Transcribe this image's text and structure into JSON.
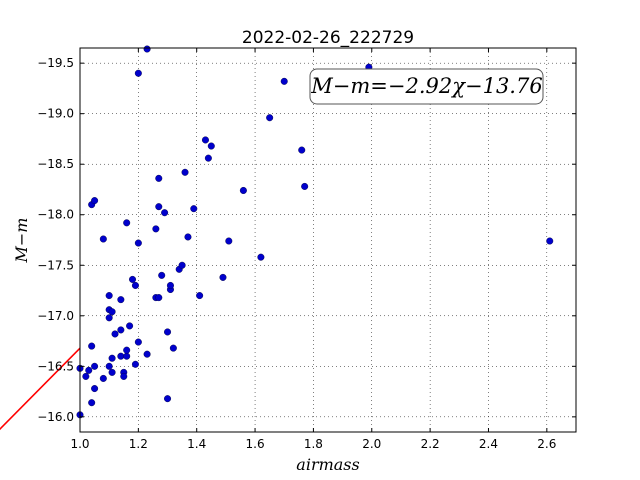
{
  "chart_data": {
    "type": "scatter",
    "title": "2022-02-26_222729",
    "xlabel": "airmass",
    "ylabel": "M−m",
    "xlim": [
      1.0,
      2.7
    ],
    "ylim": [
      -19.65,
      -15.85
    ],
    "y_inverted": true,
    "grid": true,
    "xticks": [
      "1.0",
      "1.2",
      "1.4",
      "1.6",
      "1.8",
      "2.0",
      "2.2",
      "2.4",
      "2.6"
    ],
    "yticks": [
      "−16.0",
      "−16.5",
      "−17.0",
      "−17.5",
      "−18.0",
      "−18.5",
      "−19.0",
      "−19.5"
    ],
    "annotation": "M−m=−2.92χ−13.76",
    "fit": {
      "slope": -2.92,
      "intercept": -13.76,
      "color": "#ff0000"
    },
    "point_color": "#0000cc",
    "points": [
      [
        1.0,
        -16.02
      ],
      [
        1.0,
        -16.48
      ],
      [
        1.02,
        -16.4
      ],
      [
        1.03,
        -16.46
      ],
      [
        1.04,
        -16.14
      ],
      [
        1.05,
        -16.28
      ],
      [
        1.05,
        -16.5
      ],
      [
        1.04,
        -16.7
      ],
      [
        1.08,
        -16.38
      ],
      [
        1.1,
        -16.5
      ],
      [
        1.11,
        -16.44
      ],
      [
        1.11,
        -16.58
      ],
      [
        1.12,
        -16.82
      ],
      [
        1.14,
        -16.6
      ],
      [
        1.15,
        -16.44
      ],
      [
        1.15,
        -16.4
      ],
      [
        1.16,
        -16.6
      ],
      [
        1.16,
        -16.66
      ],
      [
        1.19,
        -16.52
      ],
      [
        1.2,
        -16.74
      ],
      [
        1.23,
        -16.62
      ],
      [
        1.3,
        -16.18
      ],
      [
        1.32,
        -16.68
      ],
      [
        1.3,
        -16.84
      ],
      [
        1.14,
        -16.86
      ],
      [
        1.17,
        -16.9
      ],
      [
        1.1,
        -16.98
      ],
      [
        1.1,
        -17.06
      ],
      [
        1.11,
        -17.04
      ],
      [
        1.14,
        -17.16
      ],
      [
        1.1,
        -17.2
      ],
      [
        1.26,
        -17.18
      ],
      [
        1.27,
        -17.18
      ],
      [
        1.31,
        -17.26
      ],
      [
        1.31,
        -17.3
      ],
      [
        1.19,
        -17.3
      ],
      [
        1.18,
        -17.36
      ],
      [
        1.28,
        -17.4
      ],
      [
        1.34,
        -17.46
      ],
      [
        1.35,
        -17.5
      ],
      [
        1.41,
        -17.2
      ],
      [
        1.49,
        -17.38
      ],
      [
        1.2,
        -17.72
      ],
      [
        1.08,
        -17.76
      ],
      [
        1.37,
        -17.78
      ],
      [
        1.51,
        -17.74
      ],
      [
        1.62,
        -17.58
      ],
      [
        1.26,
        -17.86
      ],
      [
        1.16,
        -17.92
      ],
      [
        1.29,
        -18.02
      ],
      [
        1.27,
        -18.08
      ],
      [
        1.39,
        -18.06
      ],
      [
        1.04,
        -18.1
      ],
      [
        1.05,
        -18.14
      ],
      [
        1.56,
        -18.24
      ],
      [
        1.27,
        -18.36
      ],
      [
        1.36,
        -18.42
      ],
      [
        1.77,
        -18.28
      ],
      [
        1.44,
        -18.56
      ],
      [
        1.76,
        -18.64
      ],
      [
        1.45,
        -18.68
      ],
      [
        1.43,
        -18.74
      ],
      [
        1.65,
        -18.96
      ],
      [
        1.7,
        -19.32
      ],
      [
        1.2,
        -19.4
      ],
      [
        2.0,
        -19.4
      ],
      [
        1.99,
        -19.46
      ],
      [
        1.23,
        -19.64
      ],
      [
        2.61,
        -17.74
      ]
    ]
  }
}
